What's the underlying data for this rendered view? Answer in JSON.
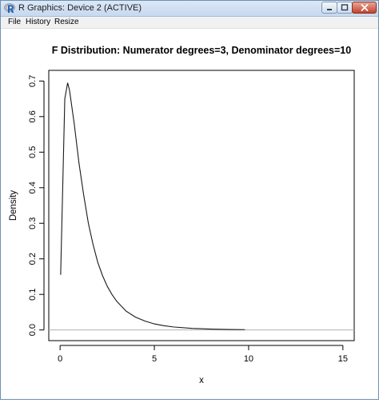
{
  "window": {
    "title": "R Graphics: Device 2 (ACTIVE)",
    "icon": "r-logo-icon"
  },
  "menu": {
    "items": [
      "File",
      "History",
      "Resize"
    ]
  },
  "chart_data": {
    "type": "line",
    "title": "F Distribution: Numerator degrees=3, Denominator degrees=10",
    "xlabel": "x",
    "ylabel": "Density",
    "xlim": [
      -0.6,
      15.6
    ],
    "ylim": [
      -0.03,
      0.73
    ],
    "x_ticks": [
      0,
      5,
      10,
      15
    ],
    "x_tick_labels": [
      "0",
      "5",
      "10",
      "15"
    ],
    "y_ticks": [
      0.0,
      0.1,
      0.2,
      0.3,
      0.4,
      0.5,
      0.6,
      0.7
    ],
    "y_tick_labels": [
      "0.0",
      "0.1",
      "0.2",
      "0.3",
      "0.4",
      "0.5",
      "0.6",
      "0.7"
    ],
    "grid": false,
    "reference_line_y": 0,
    "series": [
      {
        "x": [
          0.03,
          0.25,
          0.4,
          0.5,
          0.75,
          1.0,
          1.25,
          1.5,
          1.75,
          2.0,
          2.25,
          2.5,
          2.75,
          3.0,
          3.5,
          4.0,
          4.5,
          5.0,
          5.5,
          6.0,
          7.0,
          8.0,
          9.0,
          9.8
        ],
        "y": [
          0.155,
          0.65,
          0.695,
          0.674,
          0.58,
          0.47,
          0.38,
          0.3,
          0.24,
          0.19,
          0.153,
          0.123,
          0.1,
          0.081,
          0.053,
          0.036,
          0.025,
          0.017,
          0.012,
          0.0085,
          0.0045,
          0.0025,
          0.0014,
          0.0009
        ]
      }
    ]
  }
}
